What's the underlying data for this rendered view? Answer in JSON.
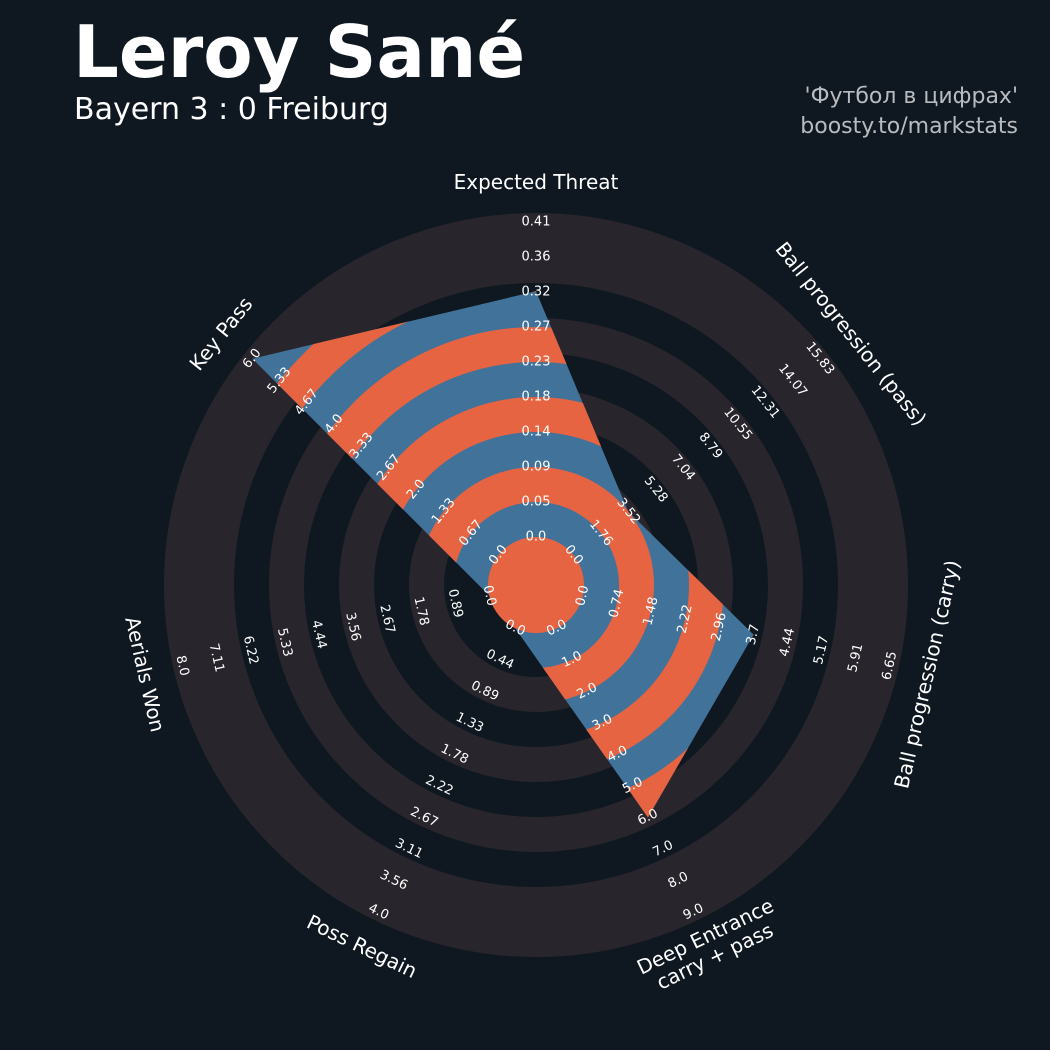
{
  "header": {
    "player": "Leroy Sané",
    "match": "Bayern 3 : 0 Freiburg",
    "credit_line1": "'Футбол в цифрах'",
    "credit_line2": "boosty.to/markstats"
  },
  "colors": {
    "background": "#0f1820",
    "ring_band": "#29252c",
    "player_blue": "#41729a",
    "player_orange": "#e66442",
    "text": "#ffffff",
    "credit": "#b8bcc0"
  },
  "chart_data": {
    "type": "radar",
    "params": [
      {
        "label": "Expected Threat",
        "value": 0.32,
        "ticks": [
          "0.0",
          "0.05",
          "0.09",
          "0.14",
          "0.18",
          "0.23",
          "0.27",
          "0.32",
          "0.36",
          "0.41"
        ]
      },
      {
        "label": "Ball progression (pass)",
        "value": 3.52,
        "ticks": [
          "0.0",
          "1.76",
          "3.52",
          "5.28",
          "7.04",
          "8.79",
          "10.55",
          "12.31",
          "14.07",
          "15.83"
        ]
      },
      {
        "label": "Ball progression (carry)",
        "value": 3.7,
        "ticks": [
          "0.0",
          "0.74",
          "1.48",
          "2.22",
          "2.96",
          "3.7",
          "4.44",
          "5.17",
          "5.91",
          "6.65"
        ]
      },
      {
        "label": "Deep Entrance\ncarry + pass",
        "value": 6.0,
        "ticks": [
          "0.0",
          "1.0",
          "2.0",
          "3.0",
          "4.0",
          "5.0",
          "6.0",
          "7.0",
          "8.0",
          "9.0"
        ]
      },
      {
        "label": "Poss Regain",
        "value": 0.0,
        "ticks": [
          "0.0",
          "0.44",
          "0.89",
          "1.33",
          "1.78",
          "2.22",
          "2.67",
          "3.11",
          "3.56",
          "4.0"
        ]
      },
      {
        "label": "Aerials Won",
        "value": 0.0,
        "ticks": [
          "0.0",
          "0.89",
          "1.78",
          "2.67",
          "3.56",
          "4.44",
          "5.33",
          "6.22",
          "7.11",
          "8.0"
        ]
      },
      {
        "label": "Key Pass",
        "value": 6.0,
        "ticks": [
          "0.0",
          "0.67",
          "1.33",
          "2.0",
          "2.67",
          "3.33",
          "4.0",
          "4.67",
          "5.33",
          "6.0"
        ]
      }
    ]
  }
}
